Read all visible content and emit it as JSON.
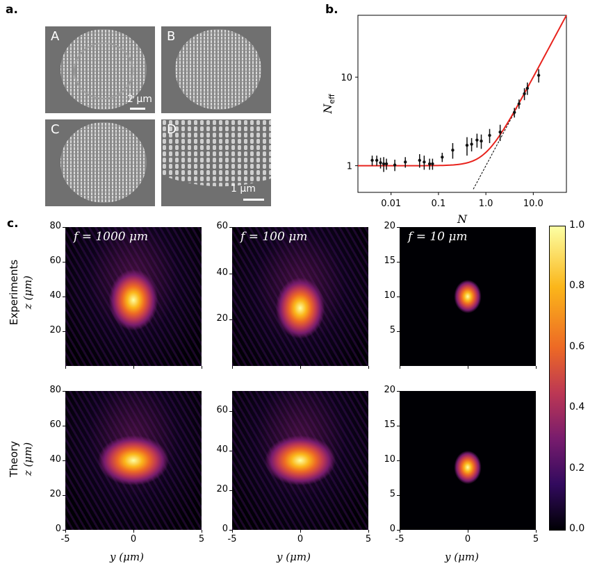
{
  "panels": {
    "a": {
      "label": "a.",
      "images": [
        {
          "letter": "A",
          "scale": "2 μm"
        },
        {
          "letter": "B",
          "scale": ""
        },
        {
          "letter": "C",
          "scale": ""
        },
        {
          "letter": "D",
          "scale": "1 μm"
        }
      ]
    },
    "b": {
      "label": "b."
    },
    "c": {
      "label": "c."
    }
  },
  "colors": {
    "fit_line": "#e8221c",
    "points": "#111111",
    "dashed": "#000000"
  },
  "chart_data": [
    {
      "type": "scatter",
      "title": "",
      "xlabel": "N",
      "ylabel": "N_eff",
      "ylabel_main": "N",
      "ylabel_sub": "eff",
      "xscale": "log",
      "yscale": "log",
      "xlim": [
        0.002,
        50
      ],
      "ylim": [
        0.5,
        50
      ],
      "xticks": [
        "0.01",
        "0.1",
        "1.0",
        "10.0"
      ],
      "xtick_values": [
        0.01,
        0.1,
        1.0,
        10.0
      ],
      "yticks": [
        "1",
        "10"
      ],
      "ytick_values": [
        1,
        10
      ],
      "series": [
        {
          "name": "data",
          "kind": "points_with_errorbars",
          "x": [
            0.004,
            0.005,
            0.006,
            0.007,
            0.008,
            0.012,
            0.02,
            0.04,
            0.05,
            0.065,
            0.075,
            0.12,
            0.2,
            0.4,
            0.5,
            0.65,
            0.8,
            1.2,
            2,
            4,
            5,
            6.5,
            7.5,
            13
          ],
          "y": [
            1.15,
            1.15,
            1.08,
            1.05,
            1.05,
            1.02,
            1.1,
            1.15,
            1.1,
            1.05,
            1.05,
            1.25,
            1.5,
            1.7,
            1.75,
            1.95,
            1.9,
            2.2,
            2.4,
            4.0,
            5.0,
            6.5,
            7.5,
            10.5
          ],
          "err": [
            0.15,
            0.15,
            0.15,
            0.2,
            0.15,
            0.15,
            0.15,
            0.2,
            0.2,
            0.15,
            0.15,
            0.15,
            0.3,
            0.4,
            0.3,
            0.35,
            0.35,
            0.4,
            0.5,
            0.5,
            0.6,
            1.0,
            1.2,
            1.8
          ]
        },
        {
          "name": "fit",
          "kind": "line",
          "color": "#e8221c",
          "formula": "sqrt(1+N^2)"
        },
        {
          "name": "asymptote",
          "kind": "dashed_line",
          "color": "#000000",
          "formula": "N"
        }
      ]
    },
    {
      "type": "heatmap",
      "rows": [
        "Experiments",
        "Theory"
      ],
      "row_ylabel": "z (μm)",
      "xlabel": "y (μm)",
      "xticks": [
        "-5",
        "0",
        "5"
      ],
      "xlim": [
        -5,
        5
      ],
      "colormap": "inferno",
      "colorbar": {
        "ticks": [
          "0.0",
          "0.2",
          "0.4",
          "0.6",
          "0.8",
          "1.0"
        ],
        "range": [
          0,
          1
        ]
      },
      "panels": [
        {
          "row": "Experiments",
          "title": "f = 1000 μm",
          "ylim": [
            0,
            80
          ],
          "yticks": [
            "20",
            "40",
            "60",
            "80"
          ],
          "focus_z": 38
        },
        {
          "row": "Experiments",
          "title": "f = 100 μm",
          "ylim": [
            0,
            60
          ],
          "yticks": [
            "20",
            "40",
            "60"
          ],
          "focus_z": 25
        },
        {
          "row": "Experiments",
          "title": "f = 10 μm",
          "ylim": [
            0,
            20
          ],
          "yticks": [
            "5",
            "10",
            "15",
            "20"
          ],
          "focus_z": 10
        },
        {
          "row": "Theory",
          "title": "",
          "ylim": [
            0,
            80
          ],
          "yticks": [
            "0",
            "20",
            "40",
            "60",
            "80"
          ],
          "focus_z": 40
        },
        {
          "row": "Theory",
          "title": "",
          "ylim": [
            0,
            70
          ],
          "yticks": [
            "0",
            "20",
            "40",
            "60"
          ],
          "focus_z": 35
        },
        {
          "row": "Theory",
          "title": "",
          "ylim": [
            0,
            20
          ],
          "yticks": [
            "0",
            "5",
            "10",
            "15",
            "20"
          ],
          "focus_z": 9
        }
      ]
    }
  ],
  "labels": {
    "experiments": "Experiments",
    "theory": "Theory",
    "z_axis": "z (μm)",
    "y_axis": "y (μm)",
    "f1": "f = 1000 μm",
    "f2": "f = 100 μm",
    "f3": "f = 10 μm"
  }
}
